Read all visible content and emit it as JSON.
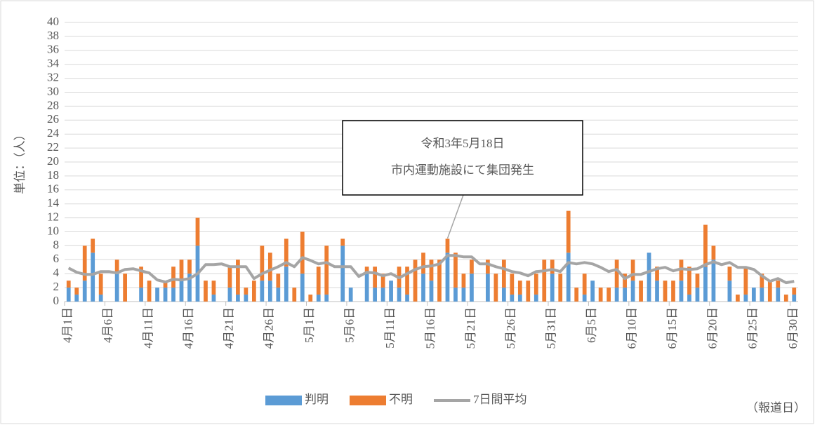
{
  "chart_data": {
    "type": "stacked_bar_line",
    "y_label": "単位：（人）",
    "x_label": "（報道日）",
    "annotation": [
      "令和3年5月18日",
      "市内運動施設にて集団発生"
    ],
    "annotation_index": 47,
    "categories": [
      "4月1日",
      null,
      null,
      null,
      null,
      "4月6日",
      null,
      null,
      null,
      null,
      "4月11日",
      null,
      null,
      null,
      null,
      "4月16日",
      null,
      null,
      null,
      null,
      "4月21日",
      null,
      null,
      null,
      null,
      "4月26日",
      null,
      null,
      null,
      null,
      "5月1日",
      null,
      null,
      null,
      null,
      "5月6日",
      null,
      null,
      null,
      null,
      "5月11日",
      null,
      null,
      null,
      null,
      "5月16日",
      null,
      null,
      null,
      null,
      "5月21日",
      null,
      null,
      null,
      null,
      "5月26日",
      null,
      null,
      null,
      null,
      "5月31日",
      null,
      null,
      null,
      null,
      "6月5日",
      null,
      null,
      null,
      null,
      "6月10日",
      null,
      null,
      null,
      null,
      "6月15日",
      null,
      null,
      null,
      null,
      "6月20日",
      null,
      null,
      null,
      null,
      "6月25日",
      null,
      null,
      null,
      null,
      "6月30日"
    ],
    "series": [
      {
        "name": "判明",
        "type": "bar",
        "color": "#5b9bd5",
        "values": [
          2,
          1,
          3,
          7,
          1,
          0,
          4,
          0,
          0,
          2,
          0,
          2,
          2,
          2,
          3,
          4,
          8,
          0,
          1,
          0,
          2,
          1,
          1,
          0,
          3,
          3,
          2,
          5,
          0,
          4,
          0,
          1,
          1,
          0,
          8,
          2,
          0,
          4,
          2,
          2,
          3,
          2,
          1,
          0,
          4,
          3,
          0,
          7,
          2,
          2,
          4,
          0,
          4,
          0,
          2,
          1,
          1,
          0,
          1,
          0,
          4,
          0,
          7,
          0,
          1,
          3,
          0,
          0,
          2,
          2,
          3,
          0,
          7,
          3,
          0,
          0,
          3,
          1,
          2,
          5,
          6,
          0,
          3,
          0,
          1,
          2,
          2,
          0,
          2,
          0,
          1
        ]
      },
      {
        "name": "不明",
        "type": "bar",
        "color": "#ed7d31",
        "values": [
          1,
          1,
          5,
          2,
          3,
          0,
          2,
          4,
          0,
          3,
          3,
          0,
          1,
          3,
          3,
          2,
          4,
          3,
          2,
          0,
          3,
          5,
          1,
          3,
          5,
          4,
          2,
          4,
          2,
          6,
          1,
          4,
          7,
          0,
          1,
          0,
          0,
          1,
          3,
          2,
          0,
          3,
          4,
          6,
          3,
          3,
          6,
          2,
          5,
          2,
          2,
          0,
          2,
          4,
          4,
          3,
          2,
          3,
          3,
          6,
          2,
          4,
          6,
          2,
          3,
          0,
          2,
          2,
          4,
          2,
          3,
          3,
          0,
          2,
          3,
          3,
          3,
          4,
          2,
          6,
          2,
          0,
          2,
          1,
          4,
          0,
          2,
          3,
          1,
          1,
          1
        ]
      },
      {
        "name": "7日間平均",
        "type": "line",
        "color": "#a5a5a5",
        "values": [
          4.8,
          4.2,
          3.9,
          3.9,
          4.3,
          4.3,
          4.1,
          4.6,
          4.7,
          4.4,
          4.1,
          3.1,
          2.8,
          3.2,
          3.1,
          3.3,
          4.0,
          5.3,
          5.3,
          5.4,
          5.0,
          5.0,
          5.0,
          3.3,
          4.0,
          4.5,
          5.0,
          5.6,
          5.0,
          6.3,
          5.9,
          5.4,
          5.6,
          5.0,
          5.0,
          5.0,
          3.6,
          4.2,
          4.1,
          3.7,
          4.0,
          3.4,
          4.0,
          4.6,
          5.0,
          5.1,
          5.4,
          6.6,
          6.6,
          6.4,
          6.4,
          5.4,
          5.4,
          5.0,
          4.7,
          4.3,
          4.1,
          3.7,
          4.3,
          4.4,
          4.6,
          4.3,
          5.6,
          5.4,
          5.6,
          5.4,
          4.9,
          4.3,
          4.6,
          3.3,
          3.9,
          3.9,
          4.3,
          4.7,
          4.9,
          4.4,
          4.7,
          4.6,
          4.7,
          5.3,
          5.7,
          5.3,
          5.6,
          4.9,
          4.9,
          4.6,
          3.7,
          2.9,
          3.3,
          2.7,
          2.9
        ]
      }
    ],
    "ylim": [
      0,
      40
    ],
    "yticks": [
      0,
      2,
      4,
      6,
      8,
      10,
      12,
      14,
      16,
      18,
      20,
      22,
      24,
      26,
      28,
      30,
      32,
      34,
      36,
      38,
      40
    ],
    "grid": true
  }
}
